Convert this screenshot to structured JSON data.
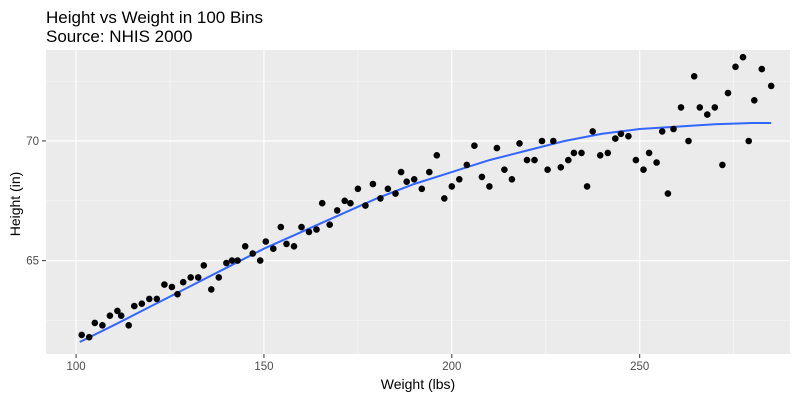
{
  "chart_data": {
    "type": "scatter",
    "title": "Height vs Weight in 100 Bins",
    "subtitle": "Source: NHIS 2000",
    "xlabel": "Weight (lbs)",
    "ylabel": "Height (in)",
    "xlim": [
      92,
      290
    ],
    "ylim": [
      61.1,
      73.8
    ],
    "x_ticks": [
      100,
      150,
      200,
      250
    ],
    "y_ticks": [
      65,
      70
    ],
    "grid": true,
    "background": "#ebebeb",
    "point_color": "#000000",
    "line_color": "#3366ff",
    "series": [
      {
        "kind": "points",
        "points": [
          [
            101.5,
            61.9
          ],
          [
            103.5,
            61.8
          ],
          [
            105,
            62.4
          ],
          [
            107,
            62.3
          ],
          [
            109,
            62.7
          ],
          [
            111,
            62.9
          ],
          [
            112,
            62.7
          ],
          [
            114,
            62.3
          ],
          [
            115.5,
            63.1
          ],
          [
            117.5,
            63.2
          ],
          [
            119.5,
            63.4
          ],
          [
            121.5,
            63.4
          ],
          [
            123.5,
            64.0
          ],
          [
            125.5,
            63.9
          ],
          [
            127,
            63.6
          ],
          [
            128.5,
            64.1
          ],
          [
            130.5,
            64.3
          ],
          [
            132.5,
            64.3
          ],
          [
            134,
            64.8
          ],
          [
            136,
            63.8
          ],
          [
            138,
            64.3
          ],
          [
            140,
            64.9
          ],
          [
            141.5,
            65.0
          ],
          [
            143,
            65.0
          ],
          [
            145,
            65.6
          ],
          [
            147,
            65.3
          ],
          [
            149,
            65.0
          ],
          [
            150.5,
            65.8
          ],
          [
            152.5,
            65.5
          ],
          [
            154.5,
            66.4
          ],
          [
            156,
            65.7
          ],
          [
            158,
            65.6
          ],
          [
            160,
            66.4
          ],
          [
            162,
            66.2
          ],
          [
            164,
            66.3
          ],
          [
            165.5,
            67.4
          ],
          [
            167.5,
            66.5
          ],
          [
            169.5,
            67.1
          ],
          [
            171.5,
            67.5
          ],
          [
            173,
            67.4
          ],
          [
            175,
            68.0
          ],
          [
            177,
            67.3
          ],
          [
            179,
            68.2
          ],
          [
            181,
            67.6
          ],
          [
            183,
            68.0
          ],
          [
            185,
            67.8
          ],
          [
            186.5,
            68.7
          ],
          [
            188,
            68.3
          ],
          [
            190,
            68.4
          ],
          [
            192,
            68.0
          ],
          [
            194,
            68.7
          ],
          [
            196,
            69.4
          ],
          [
            198,
            67.6
          ],
          [
            200,
            68.1
          ],
          [
            202,
            68.4
          ],
          [
            204,
            69.0
          ],
          [
            206,
            69.8
          ],
          [
            208,
            68.5
          ],
          [
            210,
            68.1
          ],
          [
            212,
            69.7
          ],
          [
            214,
            68.8
          ],
          [
            216,
            68.4
          ],
          [
            218,
            69.9
          ],
          [
            220,
            69.2
          ],
          [
            222,
            69.2
          ],
          [
            224,
            70.0
          ],
          [
            225.5,
            68.8
          ],
          [
            227,
            70.0
          ],
          [
            229,
            68.9
          ],
          [
            231,
            69.2
          ],
          [
            232.5,
            69.5
          ],
          [
            234.5,
            69.5
          ],
          [
            236,
            68.1
          ],
          [
            237.5,
            70.4
          ],
          [
            239.5,
            69.4
          ],
          [
            241.5,
            69.5
          ],
          [
            243.5,
            70.1
          ],
          [
            245,
            70.3
          ],
          [
            247,
            70.2
          ],
          [
            249,
            69.2
          ],
          [
            251,
            68.8
          ],
          [
            252.5,
            69.5
          ],
          [
            254.5,
            69.1
          ],
          [
            256,
            70.4
          ],
          [
            257.5,
            67.8
          ],
          [
            259,
            70.5
          ],
          [
            261,
            71.4
          ],
          [
            263,
            70.0
          ],
          [
            264.5,
            72.7
          ],
          [
            266,
            71.4
          ],
          [
            268,
            71.1
          ],
          [
            270,
            71.4
          ],
          [
            272,
            69.0
          ],
          [
            273.5,
            72.0
          ],
          [
            275.5,
            73.1
          ],
          [
            277.5,
            73.5
          ],
          [
            279,
            70.0
          ],
          [
            280.5,
            71.7
          ],
          [
            282.5,
            73.0
          ],
          [
            285,
            72.3
          ]
        ]
      },
      {
        "kind": "smooth",
        "points": [
          [
            101,
            61.6
          ],
          [
            110,
            62.3
          ],
          [
            120,
            63.1
          ],
          [
            130,
            63.9
          ],
          [
            140,
            64.7
          ],
          [
            150,
            65.5
          ],
          [
            160,
            66.2
          ],
          [
            170,
            66.9
          ],
          [
            180,
            67.6
          ],
          [
            190,
            68.2
          ],
          [
            200,
            68.7
          ],
          [
            210,
            69.2
          ],
          [
            220,
            69.6
          ],
          [
            230,
            70.0
          ],
          [
            240,
            70.3
          ],
          [
            250,
            70.5
          ],
          [
            260,
            70.6
          ],
          [
            270,
            70.7
          ],
          [
            280,
            70.75
          ],
          [
            285,
            70.75
          ]
        ]
      }
    ]
  }
}
